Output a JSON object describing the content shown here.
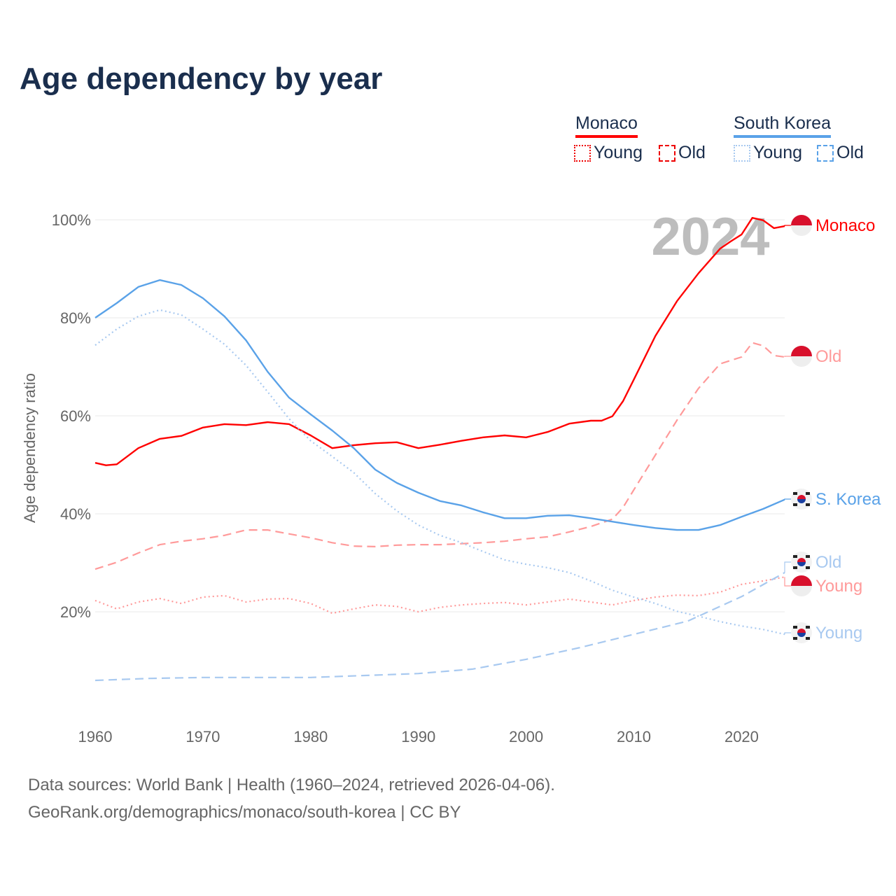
{
  "title": "Age dependency by year",
  "legend": {
    "groups": [
      {
        "name": "Monaco",
        "color": "#ff0000",
        "light": "#ff8c8c",
        "items": [
          "Young",
          "Old"
        ]
      },
      {
        "name": "South Korea",
        "color": "#5aa2e8",
        "light": "#a8c9f0",
        "items": [
          "Young",
          "Old"
        ]
      }
    ]
  },
  "year_label": "2024",
  "footer": {
    "line1": "Data sources: World Bank | Health (1960–2024, retrieved 2026-04-06).",
    "line2": "GeoRank.org/demographics/monaco/south-korea | CC BY"
  },
  "chart_data": {
    "type": "line",
    "title": "Age dependency by year",
    "xlabel": "",
    "ylabel": "Age dependency ratio",
    "xlim": [
      1960,
      2024
    ],
    "ylim": [
      0,
      100
    ],
    "x_ticks": [
      "1960",
      "1970",
      "1980",
      "1990",
      "2000",
      "2010",
      "2020"
    ],
    "y_ticks": [
      "20%",
      "40%",
      "60%",
      "80%",
      "100%"
    ],
    "grid": true,
    "series": [
      {
        "name": "Monaco",
        "end_label": "Monaco",
        "country": "monaco",
        "color": "#ff0000",
        "style": "solid",
        "points": [
          [
            1960,
            50.4
          ],
          [
            1961,
            49.9
          ],
          [
            1962,
            50.1
          ],
          [
            1964,
            53.4
          ],
          [
            1966,
            55.3
          ],
          [
            1968,
            55.9
          ],
          [
            1970,
            57.6
          ],
          [
            1972,
            58.3
          ],
          [
            1974,
            58.1
          ],
          [
            1976,
            58.7
          ],
          [
            1978,
            58.3
          ],
          [
            1980,
            56
          ],
          [
            1982,
            53.4
          ],
          [
            1984,
            54
          ],
          [
            1986,
            54.4
          ],
          [
            1988,
            54.6
          ],
          [
            1990,
            53.4
          ],
          [
            1992,
            54.1
          ],
          [
            1994,
            54.9
          ],
          [
            1996,
            55.6
          ],
          [
            1998,
            56
          ],
          [
            2000,
            55.6
          ],
          [
            2002,
            56.7
          ],
          [
            2004,
            58.4
          ],
          [
            2006,
            59
          ],
          [
            2007,
            59
          ],
          [
            2008,
            59.9
          ],
          [
            2009,
            63
          ],
          [
            2010,
            67.4
          ],
          [
            2012,
            76.3
          ],
          [
            2014,
            83.4
          ],
          [
            2016,
            89.1
          ],
          [
            2018,
            94.1
          ],
          [
            2019,
            95.6
          ],
          [
            2020,
            97
          ],
          [
            2021,
            100.4
          ],
          [
            2022,
            99.9
          ],
          [
            2023,
            98.3
          ],
          [
            2024,
            98.7
          ]
        ]
      },
      {
        "name": "Monaco Old",
        "end_label": "Old",
        "country": "monaco",
        "color": "#ff9a9a",
        "style": "dashed",
        "points": [
          [
            1960,
            28.7
          ],
          [
            1962,
            30.1
          ],
          [
            1964,
            32
          ],
          [
            1966,
            33.7
          ],
          [
            1968,
            34.4
          ],
          [
            1970,
            34.9
          ],
          [
            1972,
            35.6
          ],
          [
            1974,
            36.7
          ],
          [
            1976,
            36.7
          ],
          [
            1978,
            35.9
          ],
          [
            1980,
            35.1
          ],
          [
            1982,
            34.1
          ],
          [
            1984,
            33.4
          ],
          [
            1986,
            33.3
          ],
          [
            1988,
            33.6
          ],
          [
            1990,
            33.7
          ],
          [
            1992,
            33.7
          ],
          [
            1994,
            33.9
          ],
          [
            1996,
            34.1
          ],
          [
            1998,
            34.4
          ],
          [
            2000,
            34.9
          ],
          [
            2002,
            35.3
          ],
          [
            2004,
            36.3
          ],
          [
            2006,
            37.4
          ],
          [
            2008,
            38.9
          ],
          [
            2009,
            41.3
          ],
          [
            2010,
            44.9
          ],
          [
            2012,
            52
          ],
          [
            2014,
            59.1
          ],
          [
            2016,
            65.6
          ],
          [
            2018,
            70.6
          ],
          [
            2020,
            72
          ],
          [
            2021,
            74.9
          ],
          [
            2022,
            74.3
          ],
          [
            2023,
            72.3
          ],
          [
            2024,
            72
          ]
        ]
      },
      {
        "name": "Monaco Young",
        "end_label": "Young",
        "country": "monaco",
        "color": "#ff9a9a",
        "style": "dotted",
        "points": [
          [
            1960,
            22.3
          ],
          [
            1962,
            20.6
          ],
          [
            1964,
            22
          ],
          [
            1966,
            22.7
          ],
          [
            1968,
            21.7
          ],
          [
            1970,
            23
          ],
          [
            1972,
            23.3
          ],
          [
            1974,
            22
          ],
          [
            1976,
            22.6
          ],
          [
            1978,
            22.7
          ],
          [
            1980,
            21.7
          ],
          [
            1982,
            19.7
          ],
          [
            1984,
            20.6
          ],
          [
            1986,
            21.4
          ],
          [
            1988,
            21.1
          ],
          [
            1990,
            20
          ],
          [
            1992,
            20.9
          ],
          [
            1994,
            21.4
          ],
          [
            1996,
            21.7
          ],
          [
            1998,
            21.9
          ],
          [
            2000,
            21.4
          ],
          [
            2002,
            22
          ],
          [
            2004,
            22.6
          ],
          [
            2006,
            22
          ],
          [
            2008,
            21.4
          ],
          [
            2010,
            22.3
          ],
          [
            2012,
            23
          ],
          [
            2014,
            23.4
          ],
          [
            2016,
            23.3
          ],
          [
            2018,
            24
          ],
          [
            2020,
            25.6
          ],
          [
            2022,
            26.3
          ],
          [
            2024,
            27.1
          ]
        ]
      },
      {
        "name": "South Korea",
        "end_label": "S. Korea",
        "country": "korea",
        "color": "#5aa2e8",
        "style": "solid",
        "points": [
          [
            1960,
            80
          ],
          [
            1962,
            83
          ],
          [
            1964,
            86.3
          ],
          [
            1966,
            87.7
          ],
          [
            1968,
            86.7
          ],
          [
            1970,
            84
          ],
          [
            1972,
            80.3
          ],
          [
            1974,
            75.4
          ],
          [
            1976,
            69
          ],
          [
            1978,
            63.7
          ],
          [
            1980,
            60.3
          ],
          [
            1982,
            57
          ],
          [
            1984,
            53.4
          ],
          [
            1986,
            49
          ],
          [
            1988,
            46.3
          ],
          [
            1990,
            44.3
          ],
          [
            1992,
            42.6
          ],
          [
            1994,
            41.7
          ],
          [
            1996,
            40.3
          ],
          [
            1998,
            39.1
          ],
          [
            2000,
            39.1
          ],
          [
            2002,
            39.6
          ],
          [
            2004,
            39.7
          ],
          [
            2006,
            39.1
          ],
          [
            2008,
            38.4
          ],
          [
            2010,
            37.7
          ],
          [
            2012,
            37.1
          ],
          [
            2014,
            36.7
          ],
          [
            2016,
            36.7
          ],
          [
            2018,
            37.7
          ],
          [
            2020,
            39.4
          ],
          [
            2022,
            41
          ],
          [
            2024,
            42.9
          ]
        ]
      },
      {
        "name": "South Korea Old",
        "end_label": "Old",
        "country": "korea",
        "color": "#a8c9f0",
        "style": "dashed",
        "points": [
          [
            1960,
            6
          ],
          [
            1965,
            6.4
          ],
          [
            1970,
            6.6
          ],
          [
            1975,
            6.6
          ],
          [
            1980,
            6.6
          ],
          [
            1985,
            7
          ],
          [
            1990,
            7.4
          ],
          [
            1995,
            8.3
          ],
          [
            2000,
            10.3
          ],
          [
            2005,
            12.7
          ],
          [
            2010,
            15.4
          ],
          [
            2015,
            18.1
          ],
          [
            2020,
            23.1
          ],
          [
            2024,
            28
          ]
        ]
      },
      {
        "name": "South Korea Young",
        "end_label": "Young",
        "country": "korea",
        "color": "#a8c9f0",
        "style": "dotted",
        "points": [
          [
            1960,
            74.4
          ],
          [
            1962,
            77.7
          ],
          [
            1964,
            80.3
          ],
          [
            1966,
            81.6
          ],
          [
            1968,
            80.6
          ],
          [
            1970,
            77.7
          ],
          [
            1972,
            74.6
          ],
          [
            1974,
            70.3
          ],
          [
            1976,
            64.9
          ],
          [
            1978,
            59.4
          ],
          [
            1980,
            54.9
          ],
          [
            1982,
            51.7
          ],
          [
            1984,
            48.4
          ],
          [
            1986,
            44.1
          ],
          [
            1988,
            40.6
          ],
          [
            1990,
            37.7
          ],
          [
            1992,
            35.6
          ],
          [
            1994,
            34.1
          ],
          [
            1996,
            32.3
          ],
          [
            1998,
            30.6
          ],
          [
            2000,
            29.7
          ],
          [
            2002,
            29
          ],
          [
            2004,
            28
          ],
          [
            2006,
            26.3
          ],
          [
            2008,
            24.4
          ],
          [
            2010,
            23
          ],
          [
            2012,
            21.7
          ],
          [
            2014,
            20.1
          ],
          [
            2016,
            19.1
          ],
          [
            2018,
            18
          ],
          [
            2020,
            17.1
          ],
          [
            2022,
            16.4
          ],
          [
            2024,
            15.4
          ]
        ]
      }
    ]
  }
}
